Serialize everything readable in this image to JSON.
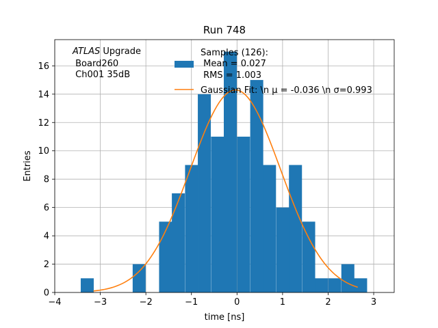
{
  "chart_data": {
    "type": "bar",
    "title": "Run 748",
    "xlabel": "time [ns]",
    "ylabel": "Entries",
    "xlim": [
      -4,
      3.45
    ],
    "ylim": [
      0,
      17.85
    ],
    "grid": true,
    "x_ticks": [
      -4,
      -3,
      -2,
      -1,
      0,
      1,
      2,
      3
    ],
    "x_tick_labels": [
      "−4",
      "−3",
      "−2",
      "−1",
      "0",
      "1",
      "2",
      "3"
    ],
    "y_ticks": [
      0,
      2,
      4,
      6,
      8,
      10,
      12,
      14,
      16
    ],
    "y_tick_labels": [
      "0",
      "2",
      "4",
      "6",
      "8",
      "10",
      "12",
      "14",
      "16"
    ],
    "bin_width": 0.2857,
    "histogram": {
      "name": "Samples (126):\n Mean = 0.027\n RMS = 1.003",
      "color": "#1f77b4",
      "bin_starts": [
        -3.43,
        -3.14,
        -2.86,
        -2.57,
        -2.29,
        -2.0,
        -1.71,
        -1.43,
        -1.14,
        -0.86,
        -0.57,
        -0.29,
        0.0,
        0.29,
        0.57,
        0.86,
        1.14,
        1.43,
        1.71,
        2.0,
        2.29,
        2.57
      ],
      "counts": [
        1,
        0,
        0,
        0,
        2,
        0,
        5,
        7,
        9,
        14,
        11,
        17,
        11,
        15,
        9,
        6,
        9,
        5,
        1,
        1,
        2,
        1
      ]
    },
    "fit": {
      "name": "Gaussian Fit: \\n $\\mu$ = -0.036 \\n $\\sigma$=0.993",
      "color": "#ff7f0e",
      "mu": -0.036,
      "sigma": 0.993,
      "amplitude": 14.3,
      "x_range": [
        -3.15,
        2.65
      ]
    },
    "legend": {
      "placement": "top-center",
      "samples_lines": [
        "Samples (126):",
        " Mean = 0.027",
        " RMS = 1.003"
      ],
      "fit_line": "Gaussian Fit: \\n μ = -0.036 \\n σ=0.993"
    },
    "annotation": {
      "placement": "top-left",
      "italic_word": "ATLAS",
      "line1_rest": " Upgrade",
      "line2": " Board260",
      "line3": " Ch001 35dB"
    }
  }
}
